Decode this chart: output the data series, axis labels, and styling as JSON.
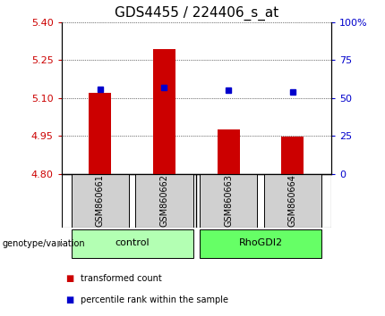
{
  "title": "GDS4455 / 224406_s_at",
  "samples": [
    "GSM860661",
    "GSM860662",
    "GSM860663",
    "GSM860664"
  ],
  "groups": [
    {
      "name": "control",
      "indices": [
        0,
        1
      ],
      "color": "#b3ffb3"
    },
    {
      "name": "RhoGDI2",
      "indices": [
        2,
        3
      ],
      "color": "#66ff66"
    }
  ],
  "bar_values": [
    5.12,
    5.295,
    4.975,
    4.948
  ],
  "bar_base": 4.8,
  "percentile_values": [
    5.135,
    5.14,
    5.13,
    5.125
  ],
  "ylim_left": [
    4.8,
    5.4
  ],
  "ylim_right": [
    0,
    100
  ],
  "yticks_left": [
    4.8,
    4.95,
    5.1,
    5.25,
    5.4
  ],
  "yticks_right": [
    0,
    25,
    50,
    75,
    100
  ],
  "bar_color": "#cc0000",
  "dot_color": "#0000cc",
  "left_tick_color": "#cc0000",
  "right_tick_color": "#0000cc",
  "grid_color": "#000000",
  "title_fontsize": 11,
  "tick_fontsize": 8,
  "sample_fontsize": 7,
  "group_fontsize": 8,
  "legend_fontsize": 7,
  "genotype_label": "genotype/variation",
  "legend_bar": "transformed count",
  "legend_dot": "percentile rank within the sample",
  "bar_width": 0.35
}
